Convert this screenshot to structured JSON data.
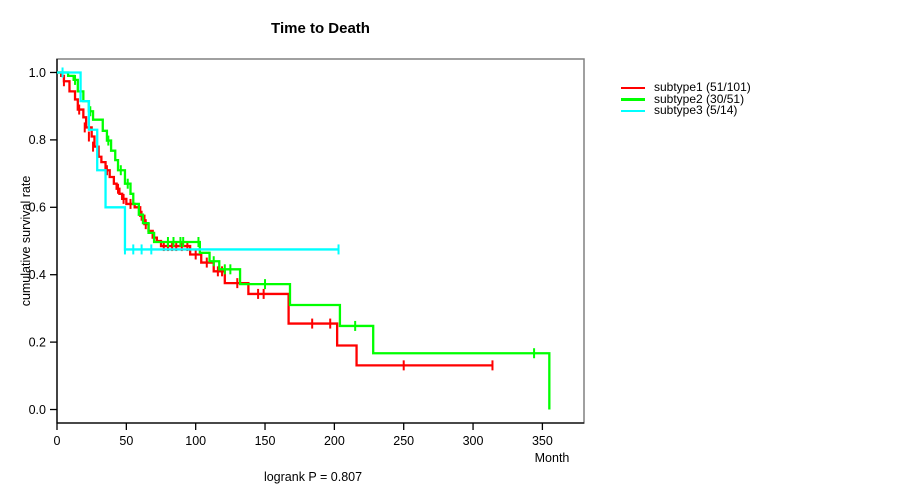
{
  "chart_data": {
    "type": "line",
    "variant": "kaplan-meier-step",
    "title": "Time to Death",
    "xlabel": "Month",
    "ylabel": "cumulative survival rate",
    "annotation": "logrank P = 0.807",
    "xlim": [
      0,
      380
    ],
    "ylim": [
      0,
      1
    ],
    "xticks": [
      0,
      50,
      100,
      150,
      200,
      250,
      300,
      350
    ],
    "yticks": [
      0.0,
      0.2,
      0.4,
      0.6,
      0.8,
      1.0
    ],
    "grid": false,
    "legend_position": "right-outside",
    "axis_box_color": "#808080",
    "axis_line_color": "#000000",
    "series": [
      {
        "label": "subtype1 (51/101)",
        "color": "#FF0000",
        "steps": [
          [
            0,
            1.0
          ],
          [
            3,
            0.99
          ],
          [
            5,
            0.974
          ],
          [
            9,
            0.944
          ],
          [
            13,
            0.92
          ],
          [
            15,
            0.89
          ],
          [
            19,
            0.867
          ],
          [
            21,
            0.837
          ],
          [
            25,
            0.81
          ],
          [
            27,
            0.78
          ],
          [
            30,
            0.75
          ],
          [
            32,
            0.734
          ],
          [
            35,
            0.71
          ],
          [
            38,
            0.69
          ],
          [
            41,
            0.67
          ],
          [
            43,
            0.655
          ],
          [
            45,
            0.64
          ],
          [
            47,
            0.625
          ],
          [
            50,
            0.61
          ],
          [
            56,
            0.6
          ],
          [
            60,
            0.575
          ],
          [
            63,
            0.55
          ],
          [
            66,
            0.53
          ],
          [
            69,
            0.51
          ],
          [
            72,
            0.5
          ],
          [
            75,
            0.485
          ],
          [
            96,
            0.46
          ],
          [
            104,
            0.436
          ],
          [
            113,
            0.41
          ],
          [
            121,
            0.375
          ],
          [
            138,
            0.343
          ],
          [
            167,
            0.255
          ],
          [
            202,
            0.19
          ],
          [
            216,
            0.131
          ],
          [
            314,
            0.131
          ]
        ],
        "censors": [
          [
            5,
            0.974
          ],
          [
            16,
            0.89
          ],
          [
            20,
            0.837
          ],
          [
            23,
            0.81
          ],
          [
            26,
            0.78
          ],
          [
            36,
            0.71
          ],
          [
            44,
            0.655
          ],
          [
            48,
            0.625
          ],
          [
            53,
            0.61
          ],
          [
            61,
            0.575
          ],
          [
            64,
            0.55
          ],
          [
            70,
            0.51
          ],
          [
            77,
            0.485
          ],
          [
            80,
            0.485
          ],
          [
            83,
            0.485
          ],
          [
            86,
            0.485
          ],
          [
            90,
            0.485
          ],
          [
            94,
            0.485
          ],
          [
            100,
            0.46
          ],
          [
            108,
            0.436
          ],
          [
            116,
            0.41
          ],
          [
            119,
            0.41
          ],
          [
            130,
            0.375
          ],
          [
            145,
            0.343
          ],
          [
            149,
            0.343
          ],
          [
            184,
            0.255
          ],
          [
            197,
            0.255
          ],
          [
            250,
            0.131
          ],
          [
            314,
            0.131
          ]
        ]
      },
      {
        "label": "subtype2 (30/51)",
        "color": "#00FF00",
        "steps": [
          [
            0,
            1.0
          ],
          [
            8,
            0.99
          ],
          [
            12,
            0.978
          ],
          [
            15,
            0.944
          ],
          [
            19,
            0.915
          ],
          [
            23,
            0.885
          ],
          [
            26,
            0.86
          ],
          [
            33,
            0.827
          ],
          [
            36,
            0.798
          ],
          [
            39,
            0.768
          ],
          [
            42,
            0.74
          ],
          [
            44,
            0.71
          ],
          [
            49,
            0.67
          ],
          [
            53,
            0.64
          ],
          [
            55,
            0.61
          ],
          [
            59,
            0.578
          ],
          [
            62,
            0.553
          ],
          [
            66,
            0.524
          ],
          [
            70,
            0.497
          ],
          [
            103,
            0.465
          ],
          [
            110,
            0.44
          ],
          [
            117,
            0.416
          ],
          [
            132,
            0.372
          ],
          [
            168,
            0.31
          ],
          [
            204,
            0.248
          ],
          [
            228,
            0.167
          ],
          [
            355,
            0.0
          ]
        ],
        "censors": [
          [
            13,
            0.978
          ],
          [
            24,
            0.885
          ],
          [
            37,
            0.798
          ],
          [
            46,
            0.71
          ],
          [
            51,
            0.67
          ],
          [
            80,
            0.497
          ],
          [
            84,
            0.497
          ],
          [
            89,
            0.497
          ],
          [
            91,
            0.497
          ],
          [
            102,
            0.497
          ],
          [
            113,
            0.44
          ],
          [
            121,
            0.416
          ],
          [
            125,
            0.416
          ],
          [
            150,
            0.372
          ],
          [
            215,
            0.248
          ],
          [
            344,
            0.167
          ]
        ]
      },
      {
        "label": "subtype3 (5/14)",
        "color": "#00FFFF",
        "steps": [
          [
            0,
            1.0
          ],
          [
            17,
            0.915
          ],
          [
            23,
            0.83
          ],
          [
            29,
            0.71
          ],
          [
            35,
            0.6
          ],
          [
            49,
            0.475
          ],
          [
            203,
            0.475
          ]
        ],
        "censors": [
          [
            4,
            1.0
          ],
          [
            49,
            0.475
          ],
          [
            55,
            0.475
          ],
          [
            61,
            0.475
          ],
          [
            68,
            0.475
          ],
          [
            203,
            0.475
          ]
        ]
      }
    ]
  }
}
